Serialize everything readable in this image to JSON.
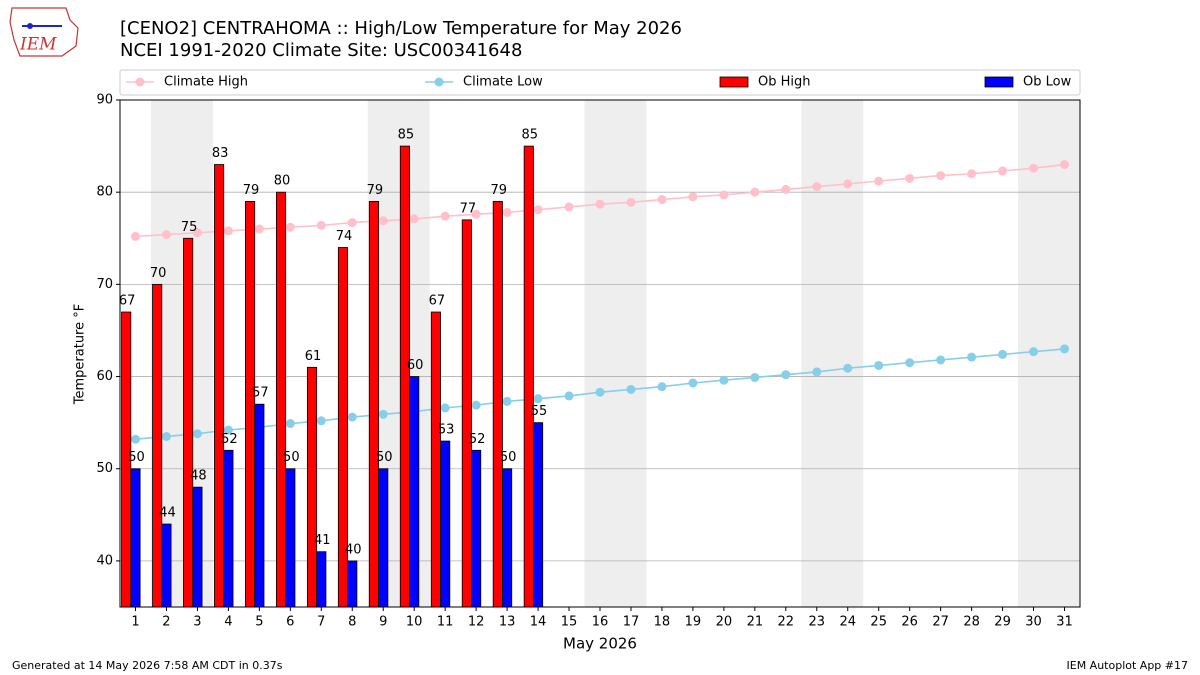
{
  "chart_data": {
    "type": "bar",
    "title": "[CENO2] CENTRAHOMA :: High/Low Temperature for May 2026",
    "subtitle": "NCEI 1991-2020 Climate Site: USC00341648",
    "xlabel": "May 2026",
    "ylabel": "Temperature °F",
    "logo_text": "IEM",
    "footer_left": "Generated at 14 May 2026 7:58 AM CDT in 0.37s",
    "footer_right": "IEM Autoplot App #17",
    "x": [
      1,
      2,
      3,
      4,
      5,
      6,
      7,
      8,
      9,
      10,
      11,
      12,
      13,
      14,
      15,
      16,
      17,
      18,
      19,
      20,
      21,
      22,
      23,
      24,
      25,
      26,
      27,
      28,
      29,
      30,
      31
    ],
    "xlim": [
      0.5,
      31.5
    ],
    "xticks": [
      1,
      2,
      3,
      4,
      5,
      6,
      7,
      8,
      9,
      10,
      11,
      12,
      13,
      14,
      15,
      16,
      17,
      18,
      19,
      20,
      21,
      22,
      23,
      24,
      25,
      26,
      27,
      28,
      29,
      30,
      31
    ],
    "ylim": [
      35,
      90
    ],
    "yticks": [
      40,
      50,
      60,
      70,
      80,
      90
    ],
    "grid": true,
    "shaded_ranges": [
      [
        1.5,
        3.5
      ],
      [
        8.5,
        10.5
      ],
      [
        15.5,
        17.5
      ],
      [
        22.5,
        24.5
      ],
      [
        29.5,
        31.5
      ]
    ],
    "series": [
      {
        "name": "Climate High",
        "kind": "line",
        "color": "#ffc0cb",
        "values": [
          75.2,
          75.4,
          75.6,
          75.8,
          76.0,
          76.2,
          76.4,
          76.7,
          76.9,
          77.1,
          77.4,
          77.6,
          77.8,
          78.1,
          78.4,
          78.7,
          78.9,
          79.2,
          79.5,
          79.7,
          80.0,
          80.3,
          80.6,
          80.9,
          81.2,
          81.5,
          81.8,
          82.0,
          82.3,
          82.6,
          83.0
        ]
      },
      {
        "name": "Climate Low",
        "kind": "line",
        "color": "#87ceeb",
        "values": [
          53.2,
          53.5,
          53.8,
          54.2,
          54.5,
          54.9,
          55.2,
          55.6,
          55.9,
          56.2,
          56.6,
          56.9,
          57.3,
          57.6,
          57.9,
          58.3,
          58.6,
          58.9,
          59.3,
          59.6,
          59.9,
          60.2,
          60.5,
          60.9,
          61.2,
          61.5,
          61.8,
          62.1,
          62.4,
          62.7,
          63.0
        ]
      },
      {
        "name": "Ob High",
        "kind": "bar",
        "color": "#ff0000",
        "values": [
          67,
          70,
          75,
          83,
          79,
          80,
          61,
          74,
          79,
          85,
          67,
          77,
          79,
          85,
          null,
          null,
          null,
          null,
          null,
          null,
          null,
          null,
          null,
          null,
          null,
          null,
          null,
          null,
          null,
          null,
          null
        ]
      },
      {
        "name": "Ob Low",
        "kind": "bar",
        "color": "#0000ff",
        "values": [
          50,
          44,
          48,
          52,
          57,
          50,
          41,
          40,
          50,
          60,
          53,
          52,
          50,
          55,
          null,
          null,
          null,
          null,
          null,
          null,
          null,
          null,
          null,
          null,
          null,
          null,
          null,
          null,
          null,
          null,
          null
        ]
      }
    ]
  }
}
